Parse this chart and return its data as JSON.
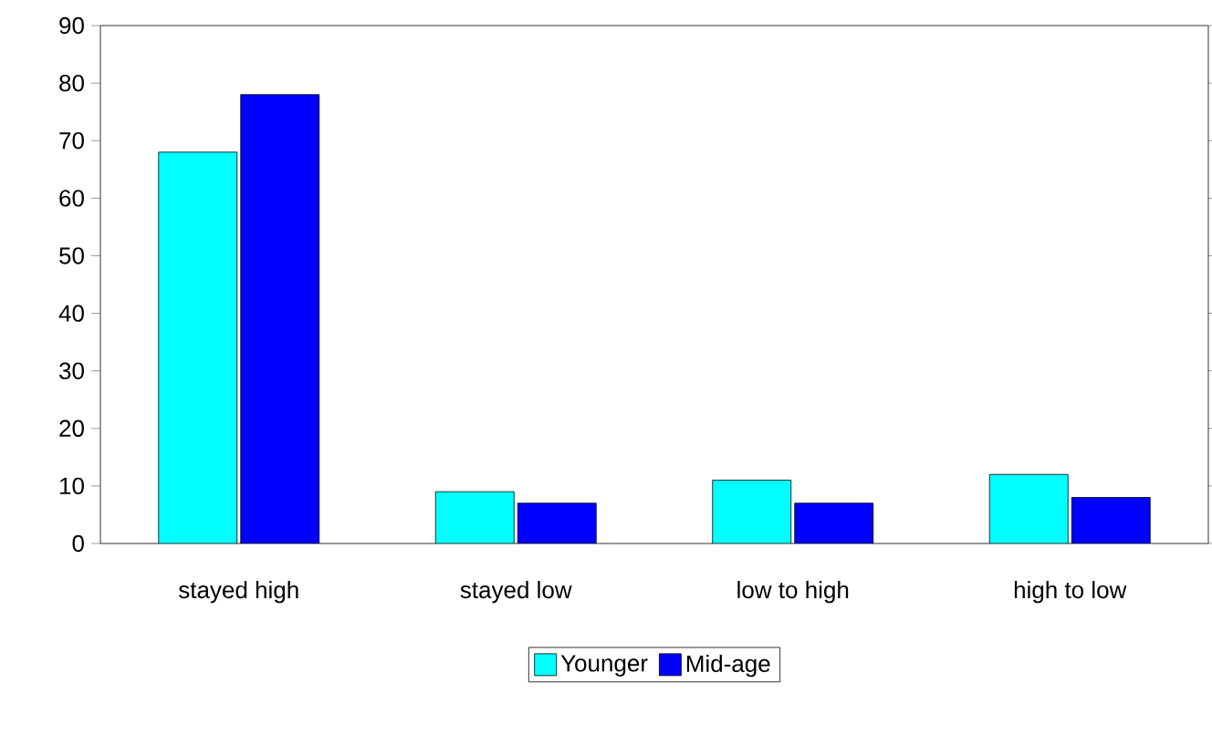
{
  "chart_data": {
    "type": "bar",
    "categories": [
      "stayed high",
      "stayed low",
      "low to high",
      "high to low"
    ],
    "series": [
      {
        "name": "Younger",
        "color": "#00ffff",
        "values": [
          68,
          9,
          11,
          12
        ]
      },
      {
        "name": "Mid-age",
        "color": "#0000ff",
        "values": [
          78,
          7,
          7,
          8
        ]
      }
    ],
    "ylim": [
      0,
      90
    ],
    "yticks": [
      0,
      10,
      20,
      30,
      40,
      50,
      60,
      70,
      80,
      90
    ],
    "grid": false,
    "legend": "bottom"
  }
}
